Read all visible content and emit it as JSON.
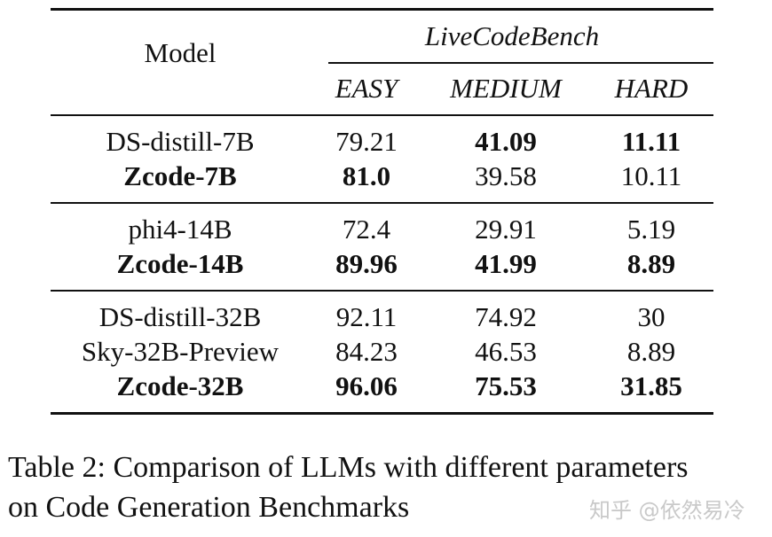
{
  "table": {
    "header": {
      "model": "Model",
      "group": "LiveCodeBench",
      "columns": [
        "EASY",
        "MEDIUM",
        "HARD"
      ]
    },
    "rows": [
      {
        "model": "DS-distill-7B",
        "values": [
          "79.21",
          "41.09",
          "11.11"
        ],
        "bold": [
          false,
          false,
          true,
          true
        ]
      },
      {
        "model": "Zcode-7B",
        "values": [
          "81.0",
          "39.58",
          "10.11"
        ],
        "bold": [
          true,
          true,
          false,
          false
        ]
      },
      {
        "model": "phi4-14B",
        "values": [
          "72.4",
          "29.91",
          "5.19"
        ],
        "bold": [
          false,
          false,
          false,
          false
        ]
      },
      {
        "model": "Zcode-14B",
        "values": [
          "89.96",
          "41.99",
          "8.89"
        ],
        "bold": [
          true,
          true,
          true,
          true
        ]
      },
      {
        "model": "DS-distill-32B",
        "values": [
          "92.11",
          "74.92",
          "30"
        ],
        "bold": [
          false,
          false,
          false,
          false
        ]
      },
      {
        "model": "Sky-32B-Preview",
        "values": [
          "84.23",
          "46.53",
          "8.89"
        ],
        "bold": [
          false,
          false,
          false,
          false
        ]
      },
      {
        "model": "Zcode-32B",
        "values": [
          "96.06",
          "75.53",
          "31.85"
        ],
        "bold": [
          true,
          true,
          true,
          true
        ]
      }
    ]
  },
  "caption": {
    "line1": "Table 2: Comparison of LLMs with different parameters",
    "line2": "on Code Generation Benchmarks"
  },
  "watermark": "知乎 @依然易冷"
}
